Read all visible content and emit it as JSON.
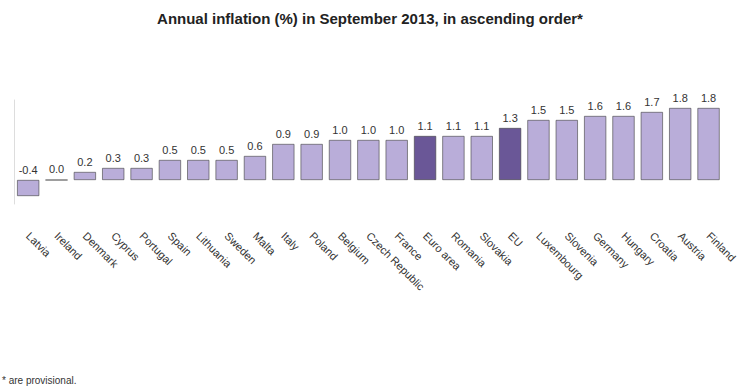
{
  "chart_data": {
    "type": "bar",
    "title": "Annual inflation (%) in September 2013, in ascending order*",
    "categories": [
      "Latvia",
      "Ireland",
      "Denmark",
      "Cyprus",
      "Portugal",
      "Spain",
      "Lithuania",
      "Sweden",
      "Malta",
      "Italy",
      "Poland",
      "Belgium",
      "Czech Republic",
      "France",
      "Euro area",
      "Romania",
      "Slovakia",
      "EU",
      "Luxembourg",
      "Slovenia",
      "Germany",
      "Hungary",
      "Croatia",
      "Austria",
      "Finland"
    ],
    "values": [
      -0.4,
      0.0,
      0.2,
      0.3,
      0.3,
      0.5,
      0.5,
      0.5,
      0.6,
      0.9,
      0.9,
      1.0,
      1.0,
      1.0,
      1.1,
      1.1,
      1.1,
      1.3,
      1.5,
      1.5,
      1.6,
      1.6,
      1.7,
      1.8,
      1.8
    ],
    "value_labels": [
      "-0.4",
      "0.0",
      "0.2",
      "0.3",
      "0.3",
      "0.5",
      "0.5",
      "0.5",
      "0.6",
      "0.9",
      "0.9",
      "1.0",
      "1.0",
      "1.0",
      "1.1",
      "1.1",
      "1.1",
      "1.3",
      "1.5",
      "1.5",
      "1.6",
      "1.6",
      "1.7",
      "1.8",
      "1.8"
    ],
    "colors": [
      "#b9add9",
      "#b9add9",
      "#b9add9",
      "#b9add9",
      "#b9add9",
      "#b9add9",
      "#b9add9",
      "#b9add9",
      "#b9add9",
      "#b9add9",
      "#b9add9",
      "#b9add9",
      "#b9add9",
      "#b9add9",
      "#6a5797",
      "#b9add9",
      "#b9add9",
      "#6a5797",
      "#b9add9",
      "#b9add9",
      "#b9add9",
      "#b9add9",
      "#b9add9",
      "#b9add9",
      "#b9add9"
    ],
    "ylim": [
      -0.6,
      2.0
    ],
    "data_labels": true,
    "tick_labels": "x",
    "grid": false,
    "footnote": "* are provisional."
  }
}
